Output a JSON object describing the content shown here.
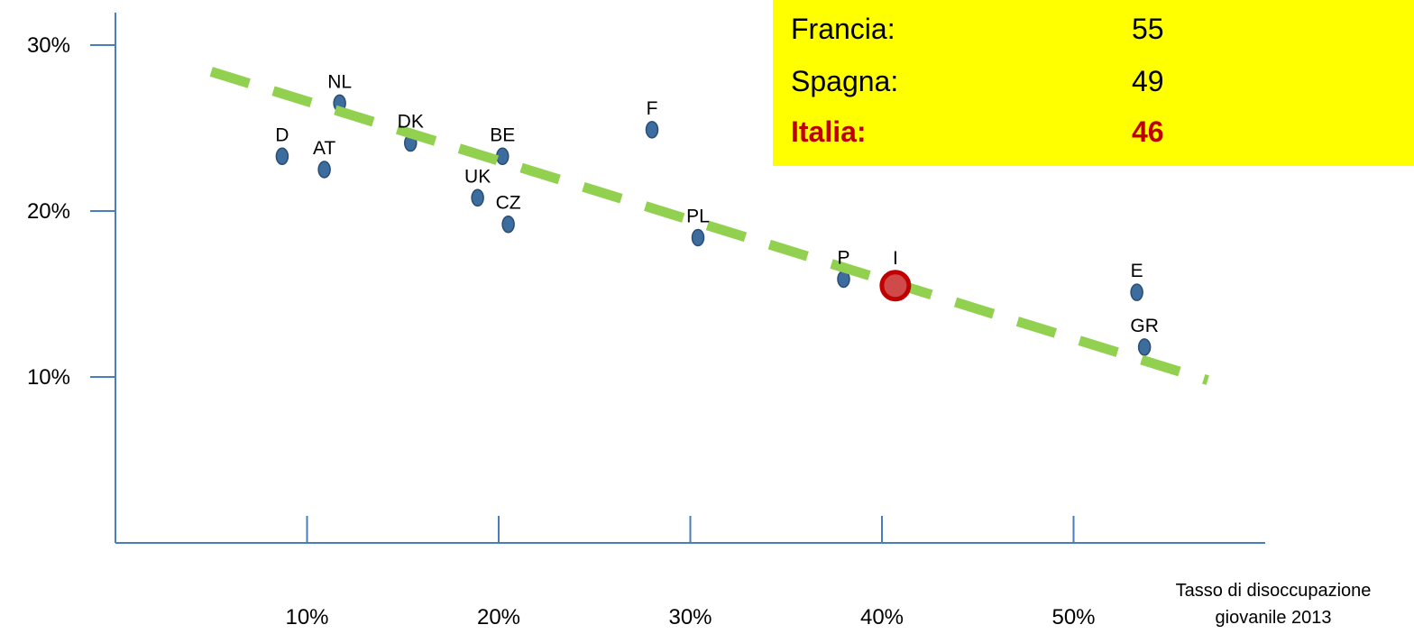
{
  "chart_data": {
    "type": "scatter",
    "xlabel_lines": [
      "Tasso di disoccupazione",
      "giovanile 2013"
    ],
    "ylabel": "",
    "x_ticks": [
      "10%",
      "20%",
      "30%",
      "40%",
      "50%"
    ],
    "y_ticks": [
      "10%",
      "20%",
      "30%"
    ],
    "xlim": [
      0,
      60
    ],
    "ylim": [
      0,
      31.5
    ],
    "points": [
      {
        "label": "D",
        "x": 8.7,
        "y": 23.3
      },
      {
        "label": "AT",
        "x": 10.9,
        "y": 22.5
      },
      {
        "label": "NL",
        "x": 11.7,
        "y": 26.5
      },
      {
        "label": "DK",
        "x": 15.4,
        "y": 24.1
      },
      {
        "label": "BE",
        "x": 20.2,
        "y": 23.3
      },
      {
        "label": "UK",
        "x": 18.9,
        "y": 20.8
      },
      {
        "label": "CZ",
        "x": 20.5,
        "y": 19.2
      },
      {
        "label": "F",
        "x": 28.0,
        "y": 24.9
      },
      {
        "label": "PL",
        "x": 30.4,
        "y": 18.4
      },
      {
        "label": "P",
        "x": 38.0,
        "y": 15.9
      },
      {
        "label": "I",
        "x": 40.7,
        "y": 15.5,
        "highlight": true
      },
      {
        "label": "E",
        "x": 53.3,
        "y": 15.1
      },
      {
        "label": "GR",
        "x": 53.7,
        "y": 11.8
      }
    ],
    "trendline": {
      "x": [
        5.0,
        57.0
      ],
      "y": [
        28.4,
        9.8
      ]
    },
    "colors": {
      "point": "#3d6c9e",
      "highlight_fill": "#d04a4a",
      "highlight_stroke": "#c00000",
      "trendline": "#92d050",
      "axis": "#4a7ebb"
    }
  },
  "info_box": {
    "rows": [
      {
        "name": "Francia:",
        "value": "55"
      },
      {
        "name": "Spagna:",
        "value": "49"
      },
      {
        "name": "Italia:",
        "value": "46",
        "highlight": true
      }
    ],
    "background": "#ffff00"
  }
}
